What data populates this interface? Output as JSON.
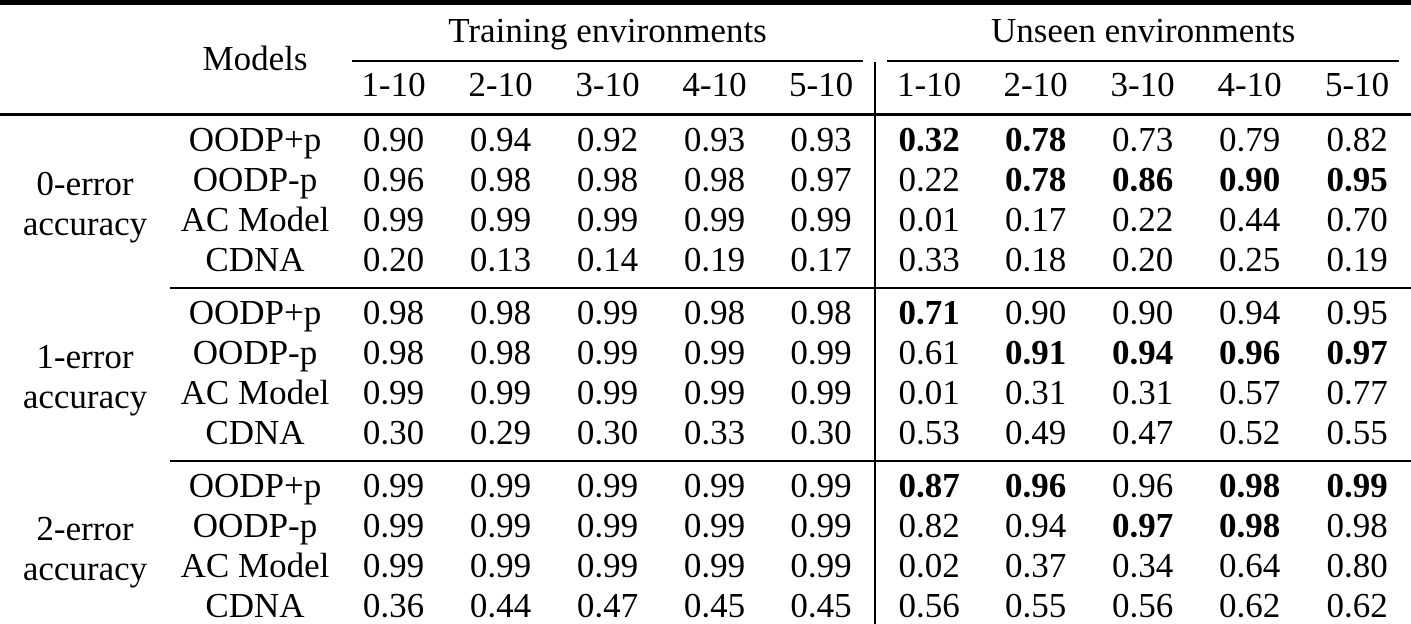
{
  "table": {
    "colors": {
      "text": "#000000",
      "background": "#ffffff",
      "rules": "#000000"
    },
    "header": {
      "models": "Models",
      "groups": [
        {
          "label": "Training environments",
          "subcols": [
            "1-10",
            "2-10",
            "3-10",
            "4-10",
            "5-10"
          ]
        },
        {
          "label": "Unseen environments",
          "subcols": [
            "1-10",
            "2-10",
            "3-10",
            "4-10",
            "5-10"
          ]
        }
      ]
    },
    "row_groups": [
      {
        "label_lines": [
          "0-error",
          "accuracy"
        ],
        "rows": [
          {
            "model": "OODP+p",
            "training": [
              "0.90",
              "0.94",
              "0.92",
              "0.93",
              "0.93"
            ],
            "unseen": [
              {
                "value": "0.32",
                "bold": true
              },
              {
                "value": "0.78",
                "bold": true
              },
              {
                "value": "0.73",
                "bold": false
              },
              {
                "value": "0.79",
                "bold": false
              },
              {
                "value": "0.82",
                "bold": false
              }
            ]
          },
          {
            "model": "OODP-p",
            "training": [
              "0.96",
              "0.98",
              "0.98",
              "0.98",
              "0.97"
            ],
            "unseen": [
              {
                "value": "0.22",
                "bold": false
              },
              {
                "value": "0.78",
                "bold": true
              },
              {
                "value": "0.86",
                "bold": true
              },
              {
                "value": "0.90",
                "bold": true
              },
              {
                "value": "0.95",
                "bold": true
              }
            ]
          },
          {
            "model": "AC Model",
            "training": [
              "0.99",
              "0.99",
              "0.99",
              "0.99",
              "0.99"
            ],
            "unseen": [
              {
                "value": "0.01",
                "bold": false
              },
              {
                "value": "0.17",
                "bold": false
              },
              {
                "value": "0.22",
                "bold": false
              },
              {
                "value": "0.44",
                "bold": false
              },
              {
                "value": "0.70",
                "bold": false
              }
            ]
          },
          {
            "model": "CDNA",
            "training": [
              "0.20",
              "0.13",
              "0.14",
              "0.19",
              "0.17"
            ],
            "unseen": [
              {
                "value": "0.33",
                "bold": false
              },
              {
                "value": "0.18",
                "bold": false
              },
              {
                "value": "0.20",
                "bold": false
              },
              {
                "value": "0.25",
                "bold": false
              },
              {
                "value": "0.19",
                "bold": false
              }
            ]
          }
        ]
      },
      {
        "label_lines": [
          "1-error",
          "accuracy"
        ],
        "rows": [
          {
            "model": "OODP+p",
            "training": [
              "0.98",
              "0.98",
              "0.99",
              "0.98",
              "0.98"
            ],
            "unseen": [
              {
                "value": "0.71",
                "bold": true
              },
              {
                "value": "0.90",
                "bold": false
              },
              {
                "value": "0.90",
                "bold": false
              },
              {
                "value": "0.94",
                "bold": false
              },
              {
                "value": "0.95",
                "bold": false
              }
            ]
          },
          {
            "model": "OODP-p",
            "training": [
              "0.98",
              "0.98",
              "0.99",
              "0.99",
              "0.99"
            ],
            "unseen": [
              {
                "value": "0.61",
                "bold": false
              },
              {
                "value": "0.91",
                "bold": true
              },
              {
                "value": "0.94",
                "bold": true
              },
              {
                "value": "0.96",
                "bold": true
              },
              {
                "value": "0.97",
                "bold": true
              }
            ]
          },
          {
            "model": "AC Model",
            "training": [
              "0.99",
              "0.99",
              "0.99",
              "0.99",
              "0.99"
            ],
            "unseen": [
              {
                "value": "0.01",
                "bold": false
              },
              {
                "value": "0.31",
                "bold": false
              },
              {
                "value": "0.31",
                "bold": false
              },
              {
                "value": "0.57",
                "bold": false
              },
              {
                "value": "0.77",
                "bold": false
              }
            ]
          },
          {
            "model": "CDNA",
            "training": [
              "0.30",
              "0.29",
              "0.30",
              "0.33",
              "0.30"
            ],
            "unseen": [
              {
                "value": "0.53",
                "bold": false
              },
              {
                "value": "0.49",
                "bold": false
              },
              {
                "value": "0.47",
                "bold": false
              },
              {
                "value": "0.52",
                "bold": false
              },
              {
                "value": "0.55",
                "bold": false
              }
            ]
          }
        ]
      },
      {
        "label_lines": [
          "2-error",
          "accuracy"
        ],
        "rows": [
          {
            "model": "OODP+p",
            "training": [
              "0.99",
              "0.99",
              "0.99",
              "0.99",
              "0.99"
            ],
            "unseen": [
              {
                "value": "0.87",
                "bold": true
              },
              {
                "value": "0.96",
                "bold": true
              },
              {
                "value": "0.96",
                "bold": false
              },
              {
                "value": "0.98",
                "bold": true
              },
              {
                "value": "0.99",
                "bold": true
              }
            ]
          },
          {
            "model": "OODP-p",
            "training": [
              "0.99",
              "0.99",
              "0.99",
              "0.99",
              "0.99"
            ],
            "unseen": [
              {
                "value": "0.82",
                "bold": false
              },
              {
                "value": "0.94",
                "bold": false
              },
              {
                "value": "0.97",
                "bold": true
              },
              {
                "value": "0.98",
                "bold": true
              },
              {
                "value": "0.98",
                "bold": false
              }
            ]
          },
          {
            "model": "AC Model",
            "training": [
              "0.99",
              "0.99",
              "0.99",
              "0.99",
              "0.99"
            ],
            "unseen": [
              {
                "value": "0.02",
                "bold": false
              },
              {
                "value": "0.37",
                "bold": false
              },
              {
                "value": "0.34",
                "bold": false
              },
              {
                "value": "0.64",
                "bold": false
              },
              {
                "value": "0.80",
                "bold": false
              }
            ]
          },
          {
            "model": "CDNA",
            "training": [
              "0.36",
              "0.44",
              "0.47",
              "0.45",
              "0.45"
            ],
            "unseen": [
              {
                "value": "0.56",
                "bold": false
              },
              {
                "value": "0.55",
                "bold": false
              },
              {
                "value": "0.56",
                "bold": false
              },
              {
                "value": "0.62",
                "bold": false
              },
              {
                "value": "0.62",
                "bold": false
              }
            ]
          }
        ]
      }
    ]
  }
}
